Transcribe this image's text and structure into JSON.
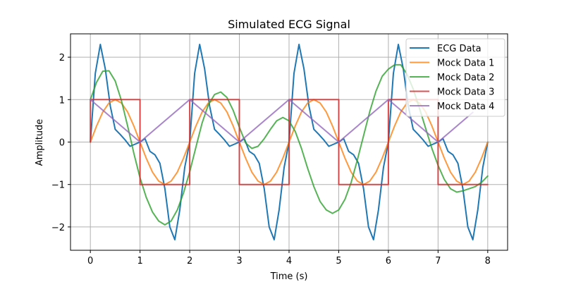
{
  "chart_data": {
    "type": "line",
    "title": "Simulated ECG Signal",
    "xlabel": "Time (s)",
    "ylabel": "Amplitude",
    "xlim": [
      -0.4,
      8.4
    ],
    "ylim": [
      -2.55,
      2.55
    ],
    "xticks": [
      0,
      1,
      2,
      3,
      4,
      5,
      6,
      7,
      8
    ],
    "xtick_labels": [
      "0",
      "1",
      "2",
      "3",
      "4",
      "5",
      "6",
      "7",
      "8"
    ],
    "yticks": [
      -2,
      -1,
      0,
      1,
      2
    ],
    "ytick_labels": [
      "−2",
      "−1",
      "0",
      "1",
      "2"
    ],
    "grid": true,
    "legend_position": "top-right",
    "series": [
      {
        "name": "ECG Data",
        "color": "#1f77b4",
        "x": [
          0,
          0.1,
          0.2,
          0.3,
          0.4,
          0.5,
          0.6,
          0.7,
          0.8,
          0.9,
          1.0,
          1.1,
          1.2,
          1.3,
          1.4,
          1.5,
          1.6,
          1.7,
          1.8,
          1.9,
          2.0,
          2.1,
          2.2,
          2.3,
          2.4,
          2.5,
          2.6,
          2.7,
          2.8,
          2.9,
          3.0,
          3.1,
          3.2,
          3.3,
          3.4,
          3.5,
          3.6,
          3.7,
          3.8,
          3.9,
          4.0,
          4.1,
          4.2,
          4.3,
          4.4,
          4.5,
          4.6,
          4.7,
          4.8,
          4.9,
          5.0,
          5.1,
          5.2,
          5.3,
          5.4,
          5.5,
          5.6,
          5.7,
          5.8,
          5.9,
          6.0,
          6.1,
          6.2,
          6.3,
          6.4,
          6.5,
          6.6,
          6.7,
          6.8,
          6.9,
          7.0,
          7.1,
          7.2,
          7.3,
          7.4,
          7.5,
          7.6,
          7.7,
          7.8,
          7.9,
          8.0
        ],
        "values": [
          0,
          1.62,
          2.3,
          1.73,
          0.85,
          0.3,
          0.18,
          0.05,
          -0.1,
          -0.05,
          0,
          0.08,
          -0.22,
          -0.3,
          -0.5,
          -1.1,
          -2.0,
          -2.3,
          -1.6,
          -0.6,
          0,
          1.62,
          2.3,
          1.73,
          0.85,
          0.3,
          0.18,
          0.05,
          -0.1,
          -0.05,
          0,
          0.08,
          -0.22,
          -0.3,
          -0.5,
          -1.1,
          -2.0,
          -2.3,
          -1.6,
          -0.6,
          0,
          1.62,
          2.3,
          1.73,
          0.85,
          0.3,
          0.18,
          0.05,
          -0.1,
          -0.05,
          0,
          0.08,
          -0.22,
          -0.3,
          -0.5,
          -1.1,
          -2.0,
          -2.3,
          -1.6,
          -0.6,
          0,
          1.62,
          2.3,
          1.73,
          0.85,
          0.3,
          0.18,
          0.05,
          -0.1,
          -0.05,
          0,
          0.08,
          -0.22,
          -0.3,
          -0.5,
          -1.1,
          -2.0,
          -2.3,
          -1.6,
          -0.6,
          0
        ]
      },
      {
        "name": "Mock Data 1",
        "color": "#ff7f0e",
        "x": [
          0,
          0.125,
          0.25,
          0.375,
          0.5,
          0.625,
          0.75,
          0.875,
          1.0,
          1.125,
          1.25,
          1.375,
          1.5,
          1.625,
          1.75,
          1.875,
          2.0,
          2.125,
          2.25,
          2.375,
          2.5,
          2.625,
          2.75,
          2.875,
          3.0,
          3.125,
          3.25,
          3.375,
          3.5,
          3.625,
          3.75,
          3.875,
          4.0,
          4.125,
          4.25,
          4.375,
          4.5,
          4.625,
          4.75,
          4.875,
          5.0,
          5.125,
          5.25,
          5.375,
          5.5,
          5.625,
          5.75,
          5.875,
          6.0,
          6.125,
          6.25,
          6.375,
          6.5,
          6.625,
          6.75,
          6.875,
          7.0,
          7.125,
          7.25,
          7.375,
          7.5,
          7.625,
          7.75,
          7.875,
          8.0
        ],
        "values": [
          0,
          0.38,
          0.71,
          0.92,
          1.0,
          0.92,
          0.71,
          0.38,
          0,
          -0.38,
          -0.71,
          -0.92,
          -1.0,
          -0.92,
          -0.71,
          -0.38,
          0,
          0.38,
          0.71,
          0.92,
          1.0,
          0.92,
          0.71,
          0.38,
          0,
          -0.38,
          -0.71,
          -0.92,
          -1.0,
          -0.92,
          -0.71,
          -0.38,
          0,
          0.38,
          0.71,
          0.92,
          1.0,
          0.92,
          0.71,
          0.38,
          0,
          -0.38,
          -0.71,
          -0.92,
          -1.0,
          -0.92,
          -0.71,
          -0.38,
          0,
          0.38,
          0.71,
          0.92,
          1.0,
          0.92,
          0.71,
          0.38,
          0,
          -0.38,
          -0.71,
          -0.92,
          -1.0,
          -0.92,
          -0.71,
          -0.38,
          0
        ]
      },
      {
        "name": "Mock Data 2",
        "color": "#2ca02c",
        "x": [
          0,
          0.125,
          0.25,
          0.375,
          0.5,
          0.625,
          0.75,
          0.875,
          1.0,
          1.125,
          1.25,
          1.375,
          1.5,
          1.625,
          1.75,
          1.875,
          2.0,
          2.125,
          2.25,
          2.375,
          2.5,
          2.625,
          2.75,
          2.875,
          3.0,
          3.125,
          3.25,
          3.375,
          3.5,
          3.625,
          3.75,
          3.875,
          4.0,
          4.125,
          4.25,
          4.375,
          4.5,
          4.625,
          4.75,
          4.875,
          5.0,
          5.125,
          5.25,
          5.375,
          5.5,
          5.625,
          5.75,
          5.875,
          6.0,
          6.125,
          6.25,
          6.375,
          6.5,
          6.625,
          6.75,
          6.875,
          7.0,
          7.125,
          7.25,
          7.375,
          7.5,
          7.625,
          7.75,
          7.875,
          8.0
        ],
        "values": [
          1.0,
          1.41,
          1.67,
          1.68,
          1.44,
          0.98,
          0.38,
          -0.26,
          -0.84,
          -1.3,
          -1.65,
          -1.86,
          -1.95,
          -1.86,
          -1.6,
          -1.2,
          -0.7,
          -0.12,
          0.45,
          0.88,
          1.12,
          1.18,
          1.05,
          0.75,
          0.35,
          -0.02,
          -0.15,
          -0.1,
          0.08,
          0.3,
          0.5,
          0.58,
          0.5,
          0.25,
          -0.15,
          -0.62,
          -1.05,
          -1.4,
          -1.6,
          -1.68,
          -1.6,
          -1.35,
          -0.95,
          -0.42,
          0.15,
          0.72,
          1.2,
          1.55,
          1.72,
          1.82,
          1.82,
          1.6,
          1.25,
          0.8,
          0.32,
          -0.15,
          -0.55,
          -0.88,
          -1.1,
          -1.18,
          -1.15,
          -1.1,
          -1.05,
          -0.95,
          -0.8
        ]
      },
      {
        "name": "Mock Data 3",
        "color": "#d62728",
        "x": [
          0,
          0,
          1,
          1,
          2,
          2,
          3,
          3,
          4,
          4,
          5,
          5,
          6,
          6,
          7,
          7,
          8
        ],
        "values": [
          0,
          1,
          1,
          -1,
          -1,
          1,
          1,
          -1,
          -1,
          1,
          1,
          -1,
          -1,
          1,
          1,
          -1,
          -1
        ]
      },
      {
        "name": "Mock Data 4",
        "color": "#9467bd",
        "x": [
          0,
          1,
          2,
          3,
          4,
          5,
          6,
          7,
          7.7
        ],
        "values": [
          1,
          0,
          1,
          0,
          1,
          0,
          1,
          0,
          0.7
        ]
      }
    ]
  }
}
